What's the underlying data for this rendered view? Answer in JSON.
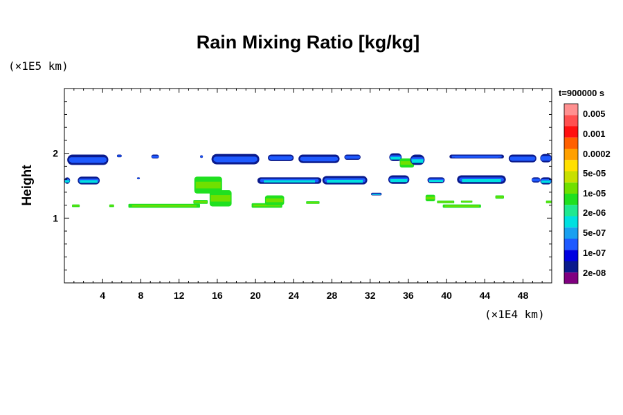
{
  "chart_data": {
    "type": "heatmap",
    "title": "Rain Mixing Ratio [kg/kg]",
    "ylabel": "Height",
    "x_multiplier": "(×1E4 km)",
    "y_multiplier": "(×1E5 km)",
    "time_label": "t=900000 s",
    "xlim": [
      0,
      51
    ],
    "ylim": [
      0,
      3
    ],
    "xticks": [
      4,
      8,
      12,
      16,
      20,
      24,
      28,
      32,
      36,
      40,
      44,
      48
    ],
    "yticks": [
      1,
      2
    ],
    "colorbar": {
      "levels": [
        "0.005",
        "0.001",
        "0.0002",
        "5e-05",
        "1e-05",
        "2e-06",
        "5e-07",
        "1e-07",
        "2e-08"
      ],
      "colors": [
        "#800080",
        "#0a1a8c",
        "#0000e0",
        "#1e5aff",
        "#1aa0f0",
        "#00e0e0",
        "#20e890",
        "#20e020",
        "#70e000",
        "#c8e000",
        "#ffe000",
        "#ffa000",
        "#ff6000",
        "#ff1010",
        "#ff5050",
        "#ff9090"
      ]
    },
    "regions": [
      {
        "x": [
          0.3,
          4.6
        ],
        "y": [
          1.82,
          1.98
        ],
        "level": "1e-07"
      },
      {
        "x": [
          5.5,
          6.0
        ],
        "y": [
          1.94,
          1.98
        ],
        "level": "1e-07"
      },
      {
        "x": [
          9.1,
          9.9
        ],
        "y": [
          1.92,
          1.98
        ],
        "level": "1e-07"
      },
      {
        "x": [
          14.2,
          14.5
        ],
        "y": [
          1.93,
          1.97
        ],
        "level": "1e-07"
      },
      {
        "x": [
          15.4,
          20.4
        ],
        "y": [
          1.83,
          1.99
        ],
        "level": "1e-07"
      },
      {
        "x": [
          21.3,
          24.0
        ],
        "y": [
          1.88,
          1.98
        ],
        "level": "1e-07"
      },
      {
        "x": [
          24.5,
          28.8
        ],
        "y": [
          1.85,
          1.98
        ],
        "level": "1e-07"
      },
      {
        "x": [
          29.3,
          31.0
        ],
        "y": [
          1.9,
          1.98
        ],
        "level": "1e-07"
      },
      {
        "x": [
          34.0,
          35.3
        ],
        "y": [
          1.88,
          2.0
        ],
        "level": "5e-07"
      },
      {
        "x": [
          35.1,
          36.6
        ],
        "y": [
          1.78,
          1.92
        ],
        "level": "1e-05"
      },
      {
        "x": [
          36.2,
          37.7
        ],
        "y": [
          1.82,
          1.98
        ],
        "level": "5e-07"
      },
      {
        "x": [
          40.3,
          46.0
        ],
        "y": [
          1.92,
          1.98
        ],
        "level": "1e-07"
      },
      {
        "x": [
          46.5,
          49.4
        ],
        "y": [
          1.86,
          1.98
        ],
        "level": "1e-07"
      },
      {
        "x": [
          49.8,
          51.0
        ],
        "y": [
          1.86,
          1.99
        ],
        "level": "1e-07"
      },
      {
        "x": [
          0.0,
          0.6
        ],
        "y": [
          1.53,
          1.63
        ],
        "level": "5e-07"
      },
      {
        "x": [
          1.4,
          3.7
        ],
        "y": [
          1.52,
          1.64
        ],
        "level": "5e-07"
      },
      {
        "x": [
          7.6,
          7.9
        ],
        "y": [
          1.6,
          1.63
        ],
        "level": "1e-07"
      },
      {
        "x": [
          13.6,
          16.5
        ],
        "y": [
          1.38,
          1.64
        ],
        "level": "1e-05"
      },
      {
        "x": [
          20.2,
          26.9
        ],
        "y": [
          1.53,
          1.63
        ],
        "level": "5e-07"
      },
      {
        "x": [
          27.0,
          31.7
        ],
        "y": [
          1.52,
          1.65
        ],
        "level": "5e-07"
      },
      {
        "x": [
          32.1,
          33.2
        ],
        "y": [
          1.35,
          1.39
        ],
        "level": "5e-07"
      },
      {
        "x": [
          33.9,
          36.1
        ],
        "y": [
          1.53,
          1.66
        ],
        "level": "5e-07"
      },
      {
        "x": [
          38.0,
          39.8
        ],
        "y": [
          1.54,
          1.63
        ],
        "level": "5e-07"
      },
      {
        "x": [
          41.1,
          46.2
        ],
        "y": [
          1.53,
          1.66
        ],
        "level": "5e-07"
      },
      {
        "x": [
          48.9,
          49.8
        ],
        "y": [
          1.55,
          1.63
        ],
        "level": "1e-07"
      },
      {
        "x": [
          49.8,
          51.0
        ],
        "y": [
          1.52,
          1.63
        ],
        "level": "5e-07"
      },
      {
        "x": [
          0.8,
          1.6
        ],
        "y": [
          1.17,
          1.21
        ],
        "level": "1e-05"
      },
      {
        "x": [
          4.7,
          5.2
        ],
        "y": [
          1.17,
          1.21
        ],
        "level": "1e-05"
      },
      {
        "x": [
          6.7,
          14.2
        ],
        "y": [
          1.16,
          1.22
        ],
        "level": "1e-05"
      },
      {
        "x": [
          13.5,
          15.0
        ],
        "y": [
          1.22,
          1.28
        ],
        "level": "1e-05"
      },
      {
        "x": [
          15.2,
          17.5
        ],
        "y": [
          1.18,
          1.43
        ],
        "level": "1e-05"
      },
      {
        "x": [
          19.6,
          22.8
        ],
        "y": [
          1.16,
          1.23
        ],
        "level": "1e-05"
      },
      {
        "x": [
          21.0,
          23.0
        ],
        "y": [
          1.2,
          1.35
        ],
        "level": "1e-05"
      },
      {
        "x": [
          25.3,
          26.7
        ],
        "y": [
          1.22,
          1.26
        ],
        "level": "1e-05"
      },
      {
        "x": [
          37.8,
          38.8
        ],
        "y": [
          1.26,
          1.36
        ],
        "level": "1e-05"
      },
      {
        "x": [
          39.0,
          40.8
        ],
        "y": [
          1.23,
          1.27
        ],
        "level": "1e-05"
      },
      {
        "x": [
          39.6,
          43.6
        ],
        "y": [
          1.16,
          1.21
        ],
        "level": "1e-05"
      },
      {
        "x": [
          41.5,
          42.7
        ],
        "y": [
          1.24,
          1.27
        ],
        "level": "1e-05"
      },
      {
        "x": [
          45.1,
          46.0
        ],
        "y": [
          1.3,
          1.35
        ],
        "level": "1e-05"
      },
      {
        "x": [
          50.4,
          51.0
        ],
        "y": [
          1.23,
          1.27
        ],
        "level": "1e-05"
      }
    ]
  }
}
